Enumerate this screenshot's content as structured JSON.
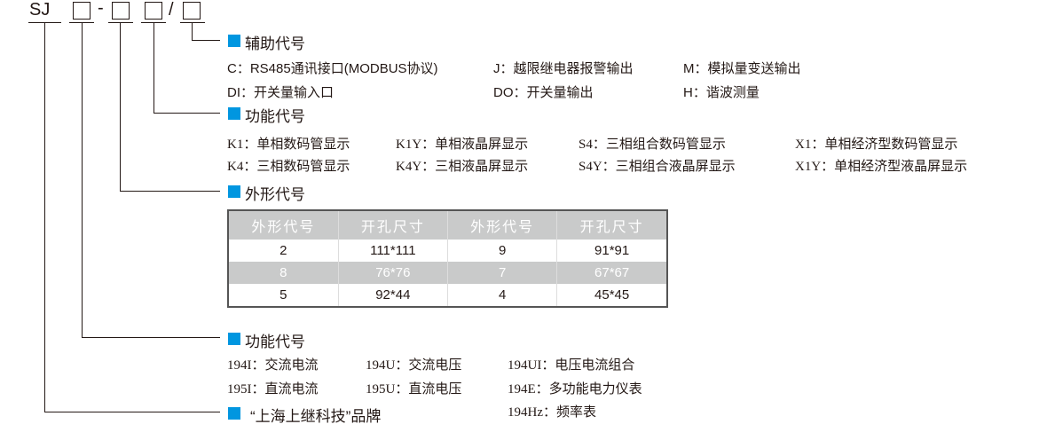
{
  "code": {
    "prefix": "SJ",
    "dash": "-",
    "slash": "/"
  },
  "accent": "#0096e0",
  "sections": {
    "aux": {
      "title": "辅助代号",
      "items": [
        [
          "C：RS485通讯接口(MODBUS协议)",
          "J：越限继电器报警输出",
          "M：模拟量变送输出"
        ],
        [
          "DI：开关量输入口",
          "DO：开关量输出",
          "H：谐波测量"
        ]
      ]
    },
    "display": {
      "title": "功能代号",
      "items": [
        [
          "K1：单相数码管显示",
          "K1Y：单相液晶屏显示",
          "S4：三相组合数码管显示",
          "X1：单相经济型数码管显示"
        ],
        [
          "K4：三相数码管显示",
          "K4Y：三相液晶屏显示",
          "S4Y：三相组合液晶屏显示",
          "X1Y：单相经济型液晶屏显示"
        ]
      ]
    },
    "shape": {
      "title": "外形代号",
      "table": {
        "headers": [
          "外形代号",
          "开孔尺寸",
          "外形代号",
          "开孔尺寸"
        ],
        "rows": [
          [
            "2",
            "111*111",
            "9",
            "91*91"
          ],
          [
            "8",
            "76*76",
            "7",
            "67*67"
          ],
          [
            "5",
            "92*44",
            "4",
            "45*45"
          ]
        ]
      }
    },
    "function": {
      "title": "功能代号",
      "items": [
        [
          "194I：交流电流",
          "194U：交流电压",
          "194UI：电压电流组合"
        ],
        [
          "195I：直流电流",
          "195U：直流电压",
          "194E：多功能电力仪表"
        ],
        [
          "",
          "",
          "194Hz：频率表"
        ]
      ]
    },
    "brand": {
      "title": "“上海上继科技”品牌"
    }
  }
}
